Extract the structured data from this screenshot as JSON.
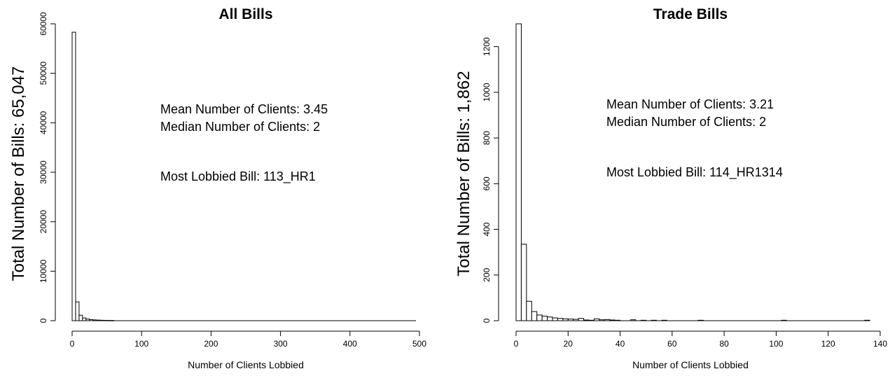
{
  "chart_data": [
    {
      "type": "bar",
      "title": "All Bills",
      "xlabel": "Number of Clients Lobbied",
      "ylabel": "Total Number of Bills: 65,047",
      "xlim": [
        0,
        500
      ],
      "ylim": [
        0,
        60000
      ],
      "xticks": [
        0,
        100,
        200,
        300,
        400,
        500
      ],
      "yticks": [
        0,
        10000,
        20000,
        30000,
        40000,
        50000,
        60000
      ],
      "bin_width": 5,
      "bins": [
        {
          "x0": 0,
          "x1": 5,
          "count": 58300
        },
        {
          "x0": 5,
          "x1": 10,
          "count": 3800
        },
        {
          "x0": 10,
          "x1": 15,
          "count": 1100
        },
        {
          "x0": 15,
          "x1": 20,
          "count": 550
        },
        {
          "x0": 20,
          "x1": 25,
          "count": 330
        },
        {
          "x0": 25,
          "x1": 30,
          "count": 220
        },
        {
          "x0": 30,
          "x1": 35,
          "count": 160
        },
        {
          "x0": 35,
          "x1": 40,
          "count": 120
        },
        {
          "x0": 40,
          "x1": 45,
          "count": 90
        },
        {
          "x0": 45,
          "x1": 50,
          "count": 70
        },
        {
          "x0": 50,
          "x1": 55,
          "count": 55
        },
        {
          "x0": 55,
          "x1": 60,
          "count": 45
        }
      ],
      "baseline_extent": [
        0,
        495
      ],
      "annotations": [
        {
          "id": "mean",
          "text": "Mean Number of Clients: 3.45"
        },
        {
          "id": "median",
          "text": "Median Number of Clients: 2"
        },
        {
          "id": "most",
          "text": "Most Lobbied Bill: 113_HR1"
        }
      ]
    },
    {
      "type": "bar",
      "title": "Trade Bills",
      "xlabel": "Number of Clients Lobbied",
      "ylabel": "Total Number of Bills: 1,862",
      "xlim": [
        0,
        140
      ],
      "ylim": [
        0,
        1300
      ],
      "xticks": [
        0,
        20,
        40,
        60,
        80,
        100,
        120,
        140
      ],
      "yticks": [
        0,
        200,
        400,
        600,
        800,
        1000,
        1200
      ],
      "bin_width": 2,
      "bins": [
        {
          "x0": 0,
          "x1": 2,
          "count": 1300
        },
        {
          "x0": 2,
          "x1": 4,
          "count": 335
        },
        {
          "x0": 4,
          "x1": 6,
          "count": 85
        },
        {
          "x0": 6,
          "x1": 8,
          "count": 40
        },
        {
          "x0": 8,
          "x1": 10,
          "count": 25
        },
        {
          "x0": 10,
          "x1": 12,
          "count": 20
        },
        {
          "x0": 12,
          "x1": 14,
          "count": 16
        },
        {
          "x0": 14,
          "x1": 16,
          "count": 12
        },
        {
          "x0": 16,
          "x1": 18,
          "count": 10
        },
        {
          "x0": 18,
          "x1": 20,
          "count": 8
        },
        {
          "x0": 20,
          "x1": 22,
          "count": 7
        },
        {
          "x0": 22,
          "x1": 24,
          "count": 6
        },
        {
          "x0": 24,
          "x1": 26,
          "count": 10
        },
        {
          "x0": 26,
          "x1": 28,
          "count": 3
        },
        {
          "x0": 28,
          "x1": 30,
          "count": 2
        },
        {
          "x0": 30,
          "x1": 32,
          "count": 8
        },
        {
          "x0": 32,
          "x1": 34,
          "count": 4
        },
        {
          "x0": 34,
          "x1": 36,
          "count": 5
        },
        {
          "x0": 36,
          "x1": 38,
          "count": 3
        },
        {
          "x0": 38,
          "x1": 40,
          "count": 2
        },
        {
          "x0": 44,
          "x1": 46,
          "count": 4
        },
        {
          "x0": 48,
          "x1": 50,
          "count": 2
        },
        {
          "x0": 52,
          "x1": 54,
          "count": 2
        },
        {
          "x0": 56,
          "x1": 58,
          "count": 2
        },
        {
          "x0": 70,
          "x1": 72,
          "count": 2
        },
        {
          "x0": 102,
          "x1": 104,
          "count": 2
        },
        {
          "x0": 134,
          "x1": 136,
          "count": 2
        }
      ],
      "baseline_extent": [
        0,
        136
      ],
      "annotations": [
        {
          "id": "mean",
          "text": "Mean Number of Clients: 3.21"
        },
        {
          "id": "median",
          "text": "Median Number of Clients: 2"
        },
        {
          "id": "most",
          "text": "Most Lobbied Bill: 114_HR1314"
        }
      ]
    }
  ]
}
